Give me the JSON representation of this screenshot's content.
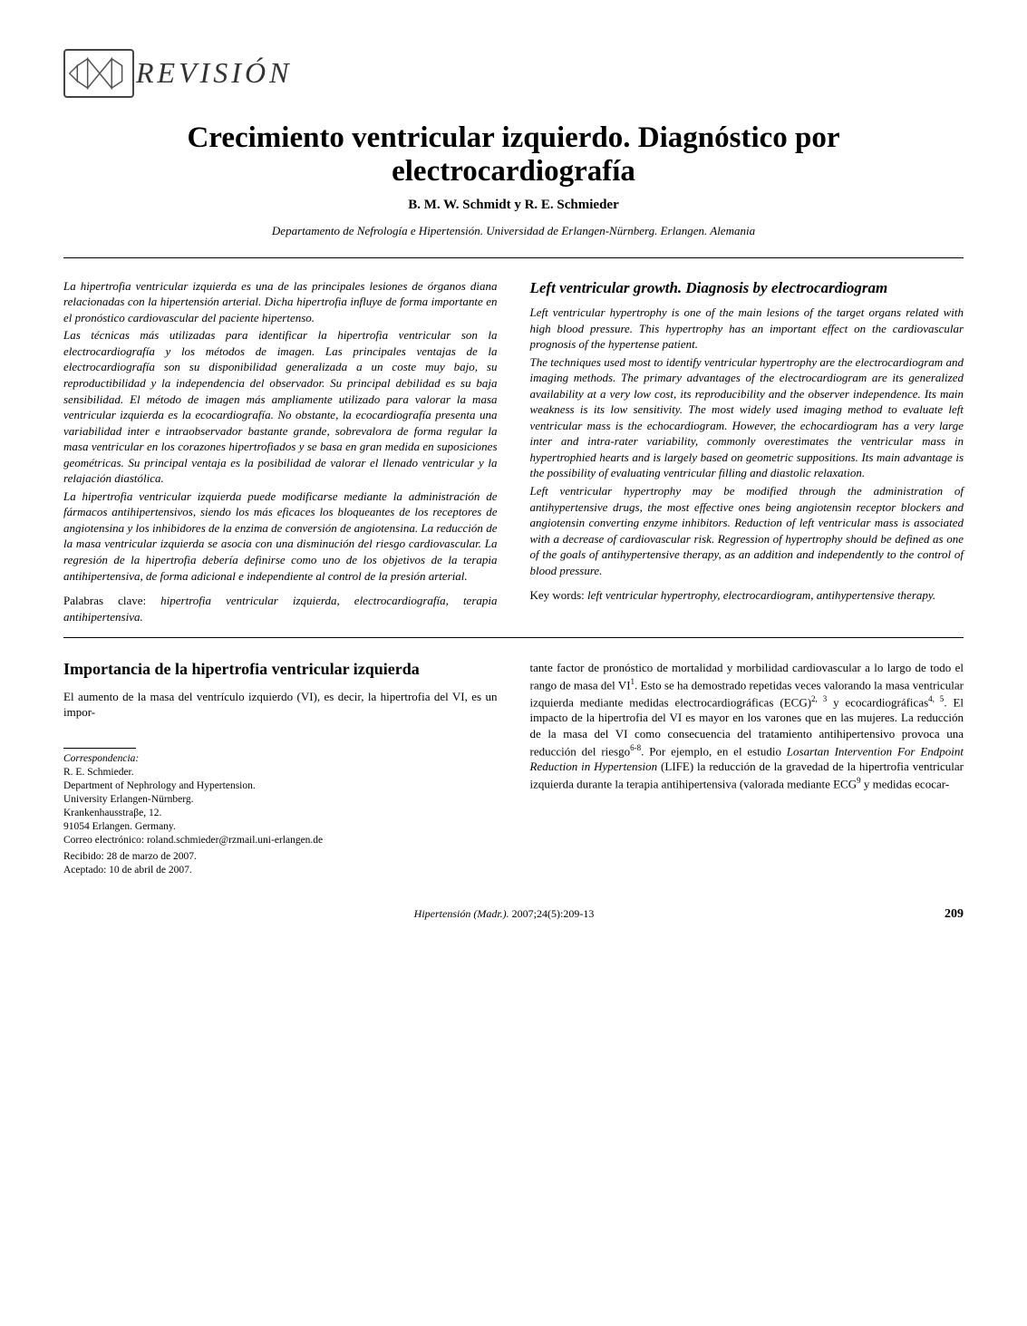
{
  "logo": {
    "text": "REVISIÓN"
  },
  "title": "Crecimiento ventricular izquierdo. Diagnóstico por electrocardiografía",
  "authors": "B. M. W. Schmidt y R. E. Schmieder",
  "affiliation": "Departamento de Nefrología e Hipertensión. Universidad de Erlangen-Nürnberg. Erlangen. Alemania",
  "abstract_es": {
    "p1": "La hipertrofia ventricular izquierda es una de las principales lesiones de órganos diana relacionadas con la hipertensión arterial. Dicha hipertrofia influye de forma importante en el pronóstico cardiovascular del paciente hipertenso.",
    "p2": "Las técnicas más utilizadas para identificar la hipertrofia ventricular son la electrocardiografía y los métodos de imagen. Las principales ventajas de la electrocardiografía son su disponibilidad generalizada a un coste muy bajo, su reproductibilidad y la independencia del observador. Su principal debilidad es su baja sensibilidad. El método de imagen más ampliamente utilizado para valorar la masa ventricular izquierda es la ecocardiografía. No obstante, la ecocardiografía presenta una variabilidad inter e intraobservador bastante grande, sobrevalora de forma regular la masa ventricular en los corazones hipertrofiados y se basa en gran medida en suposiciones geométricas. Su principal ventaja es la posibilidad de valorar el llenado ventricular y la relajación diastólica.",
    "p3": "La hipertrofia ventricular izquierda puede modificarse mediante la administración de fármacos antihipertensivos, siendo los más eficaces los bloqueantes de los receptores de angiotensina y los inhibidores de la enzima de conversión de angiotensina. La reducción de la masa ventricular izquierda se asocia con una disminución del riesgo cardiovascular. La regresión de la hipertrofia debería definirse como uno de los objetivos de la terapia antihipertensiva, de forma adicional e independiente al control de la presión arterial.",
    "keywords_prefix": "Palabras clave: ",
    "keywords": "hipertrofia ventricular izquierda, electrocardiografía, terapia antihipertensiva."
  },
  "abstract_en": {
    "heading": "Left ventricular growth. Diagnosis by electrocardiogram",
    "p1": "Left ventricular hypertrophy is one of the main lesions of the target organs related with high blood pressure. This hypertrophy has an important effect on the cardiovascular prognosis of the hypertense patient.",
    "p2": "The techniques used most to identify ventricular hypertrophy are the electrocardiogram and imaging methods. The primary advantages of the electrocardiogram are its generalized availability at a very low cost, its reproducibility and the observer independence. Its main weakness is its low sensitivity. The most widely used imaging method to evaluate left ventricular mass is the echocardiogram. However, the echocardiogram has a very large inter and intra-rater variability, commonly overestimates the ventricular mass in hypertrophied hearts and is largely based on geometric suppositions. Its main advantage is the possibility of evaluating ventricular filling and diastolic relaxation.",
    "p3": "Left ventricular hypertrophy may be modified through the administration of antihypertensive drugs, the most effective ones being angiotensin receptor blockers and angiotensin converting enzyme inhibitors. Reduction of left ventricular mass is associated with a decrease of cardiovascular risk. Regression of hypertrophy should be defined as one of the goals of antihypertensive therapy, as an addition and independently to the control of blood pressure.",
    "keywords_prefix": "Key words: ",
    "keywords": "left ventricular hypertrophy, electrocardiogram, antihypertensive therapy."
  },
  "section": {
    "heading": "Importancia de la hipertrofia ventricular izquierda",
    "p1": "El aumento de la masa del ventrículo izquierdo (VI), es decir, la hipertrofia del VI, es un impor-"
  },
  "right_body": {
    "html": "tante factor de pronóstico de mortalidad y morbilidad cardiovascular a lo largo de todo el rango de masa del VI<sup>1</sup>. Esto se ha demostrado repetidas veces valorando la masa ventricular izquierda mediante medidas electrocardiográficas (ECG)<sup>2, 3</sup> y ecocardiográficas<sup>4, 5</sup>. El impacto de la hipertrofia del VI es mayor en los varones que en las mujeres. La reducción de la masa del VI como consecuencia del tratamiento antihipertensivo provoca una reducción del riesgo<sup>6-8</sup>. Por ejemplo, en el estudio <i>Losartan Intervention For Endpoint Reduction in Hypertension</i> (LIFE) la reducción de la gravedad de la hipertrofia ventricular izquierda durante la terapia antihipertensiva (valorada mediante ECG<sup>9</sup> y medidas ecocar-"
  },
  "correspondence": {
    "label": "Correspondencia:",
    "name": "R. E. Schmieder.",
    "l1": "Department of Nephrology and Hypertension.",
    "l2": "University Erlangen-Nürnberg.",
    "l3": "Krankenhausstraβe, 12.",
    "l4": "91054 Erlangen. Germany.",
    "l5": "Correo electrónico: roland.schmieder@rzmail.uni-erlangen.de",
    "l6": "Recibido: 28 de marzo de 2007.",
    "l7": "Aceptado: 10 de abril de 2007."
  },
  "footer": {
    "journal": "Hipertensión (Madr.). ",
    "issue": "2007;24(5):209-13",
    "page": "209"
  },
  "colors": {
    "text": "#000000",
    "border": "#444444",
    "bg": "#ffffff"
  }
}
